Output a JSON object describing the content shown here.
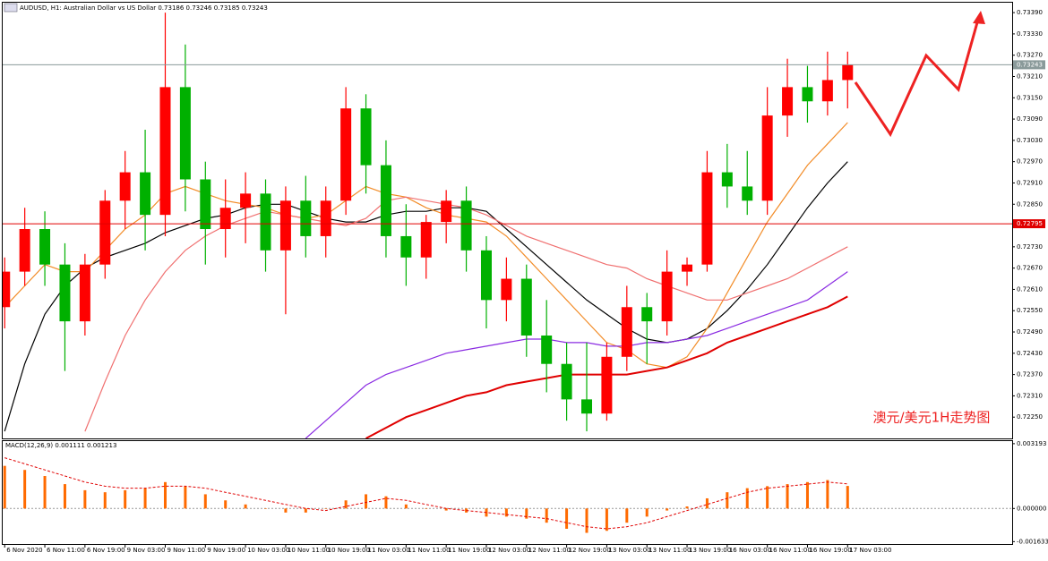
{
  "chart_data": [
    {
      "type": "candlestick",
      "title": "AUDUSD, H1: Australian Dollar vs US Dollar 0.73186 0.73246 0.73185 0.73243",
      "annotation": "澳元/美元1H走势图",
      "up_color": "#ff0000",
      "down_color": "#00b000",
      "open": [
        0.7256,
        0.7266,
        0.7278,
        0.7268,
        0.7252,
        0.7268,
        0.7286,
        0.7294,
        0.7282,
        0.7318,
        0.7292,
        0.7278,
        0.7284,
        0.7288,
        0.7272,
        0.7286,
        0.7276,
        0.7286,
        0.7312,
        0.7296,
        0.7276,
        0.727,
        0.728,
        0.7286,
        0.7272,
        0.7258,
        0.7264,
        0.7248,
        0.724,
        0.723,
        0.7226,
        0.7242,
        0.7256,
        0.7252,
        0.7266,
        0.7268,
        0.7294,
        0.729,
        0.7286,
        0.731,
        0.7318,
        0.7314,
        0.732
      ],
      "high": [
        0.727,
        0.7284,
        0.7283,
        0.7274,
        0.7271,
        0.7289,
        0.73,
        0.7306,
        0.7339,
        0.733,
        0.7297,
        0.7292,
        0.7294,
        0.7292,
        0.729,
        0.7293,
        0.729,
        0.7318,
        0.7316,
        0.7303,
        0.7285,
        0.7282,
        0.7289,
        0.729,
        0.7276,
        0.727,
        0.7268,
        0.7258,
        0.7246,
        0.7246,
        0.7246,
        0.7262,
        0.726,
        0.7272,
        0.727,
        0.73,
        0.7302,
        0.73,
        0.7318,
        0.7326,
        0.7324,
        0.7328,
        0.7328
      ],
      "low": [
        0.725,
        0.7262,
        0.7262,
        0.7238,
        0.7248,
        0.7264,
        0.7278,
        0.7272,
        0.7276,
        0.7283,
        0.7268,
        0.727,
        0.7274,
        0.7266,
        0.7254,
        0.727,
        0.727,
        0.7282,
        0.7288,
        0.727,
        0.7262,
        0.7264,
        0.7274,
        0.7266,
        0.725,
        0.7252,
        0.7242,
        0.7232,
        0.7224,
        0.7221,
        0.7224,
        0.7238,
        0.724,
        0.7248,
        0.7262,
        0.7266,
        0.7284,
        0.7282,
        0.7282,
        0.7304,
        0.7308,
        0.731,
        0.7312
      ],
      "close": [
        0.7266,
        0.7278,
        0.7268,
        0.7252,
        0.7268,
        0.7286,
        0.7294,
        0.7282,
        0.7318,
        0.7292,
        0.7278,
        0.7284,
        0.7288,
        0.7272,
        0.7286,
        0.7276,
        0.7286,
        0.7312,
        0.7296,
        0.7276,
        0.727,
        0.728,
        0.7286,
        0.7272,
        0.7258,
        0.7264,
        0.7248,
        0.724,
        0.723,
        0.7226,
        0.7242,
        0.7256,
        0.7252,
        0.7266,
        0.7268,
        0.7294,
        0.729,
        0.7286,
        0.731,
        0.7318,
        0.7314,
        0.732,
        0.73243
      ],
      "series": [
        {
          "color": "#000000",
          "values": [
            0.7221,
            0.724,
            0.7254,
            0.7262,
            0.7267,
            0.727,
            0.7272,
            0.7274,
            0.7277,
            0.7279,
            0.7281,
            0.7282,
            0.7284,
            0.7285,
            0.7285,
            0.7283,
            0.7281,
            0.728,
            0.728,
            0.7282,
            0.7283,
            0.7283,
            0.7284,
            0.7284,
            0.7283,
            0.7278,
            0.7273,
            0.7268,
            0.7263,
            0.7258,
            0.7254,
            0.725,
            0.7247,
            0.7246,
            0.7247,
            0.725,
            0.7255,
            0.7261,
            0.7268,
            0.7276,
            0.7284,
            0.7291,
            0.7297
          ]
        },
        {
          "color": "#f28c28",
          "values": [
            0.7256,
            0.7262,
            0.7268,
            0.7266,
            0.7266,
            0.7272,
            0.7278,
            0.7282,
            0.7288,
            0.729,
            0.7288,
            0.7286,
            0.7285,
            0.7284,
            0.7282,
            0.7281,
            0.7282,
            0.7286,
            0.729,
            0.7288,
            0.7287,
            0.7284,
            0.7282,
            0.7281,
            0.728,
            0.7276,
            0.727,
            0.7264,
            0.7258,
            0.7252,
            0.7246,
            0.7244,
            0.724,
            0.7239,
            0.7242,
            0.725,
            0.726,
            0.727,
            0.728,
            0.7288,
            0.7296,
            0.7302,
            0.7308
          ]
        },
        {
          "color": "#f07070",
          "values": [
            null,
            null,
            null,
            null,
            0.7221,
            0.7235,
            0.7248,
            0.7258,
            0.7266,
            0.7272,
            0.7276,
            0.7279,
            0.7281,
            0.7283,
            0.7282,
            0.7281,
            0.728,
            0.7279,
            0.7281,
            0.7286,
            0.7287,
            0.7286,
            0.7285,
            0.7284,
            0.7282,
            0.7279,
            0.7276,
            0.7274,
            0.7272,
            0.727,
            0.7268,
            0.7267,
            0.7264,
            0.7262,
            0.726,
            0.7258,
            0.7258,
            0.726,
            0.7262,
            0.7264,
            0.7267,
            0.727,
            0.7273
          ]
        },
        {
          "color": "#8a2be2",
          "values": [
            null,
            null,
            null,
            null,
            null,
            null,
            null,
            null,
            null,
            null,
            null,
            null,
            null,
            null,
            null,
            0.7219,
            0.7224,
            0.7229,
            0.7234,
            0.7237,
            0.7239,
            0.7241,
            0.7243,
            0.7244,
            0.7245,
            0.7246,
            0.7247,
            0.7247,
            0.7246,
            0.7246,
            0.7245,
            0.7245,
            0.7246,
            0.7246,
            0.7247,
            0.7248,
            0.725,
            0.7252,
            0.7254,
            0.7256,
            0.7258,
            0.7262,
            0.7266
          ]
        },
        {
          "color": "#e00000",
          "values": [
            null,
            null,
            null,
            null,
            null,
            null,
            null,
            null,
            null,
            null,
            null,
            null,
            null,
            null,
            null,
            null,
            null,
            null,
            0.7219,
            0.7222,
            0.7225,
            0.7227,
            0.7229,
            0.7231,
            0.7232,
            0.7234,
            0.7235,
            0.7236,
            0.7237,
            0.7237,
            0.7237,
            0.7237,
            0.7238,
            0.7239,
            0.7241,
            0.7243,
            0.7246,
            0.7248,
            0.725,
            0.7252,
            0.7254,
            0.7256,
            0.7259
          ]
        }
      ],
      "hlines": [
        {
          "value": 0.72795,
          "label": "0.72795",
          "color": "#e00000"
        },
        {
          "value": 0.73243,
          "label": "0.73243",
          "color": "#8a9a9a"
        }
      ],
      "xlim": [
        -0.1,
        50.2
      ],
      "ylim": [
        0.7219,
        0.73418
      ],
      "yticks": [
        {
          "value": 0.7225,
          "label": "0.72250"
        },
        {
          "value": 0.7231,
          "label": "0.72310"
        },
        {
          "value": 0.7237,
          "label": "0.72370"
        },
        {
          "value": 0.7243,
          "label": "0.72430"
        },
        {
          "value": 0.7249,
          "label": "0.72490"
        },
        {
          "value": 0.7255,
          "label": "0.72550"
        },
        {
          "value": 0.7261,
          "label": "0.72610"
        },
        {
          "value": 0.7267,
          "label": "0.72670"
        },
        {
          "value": 0.7273,
          "label": "0.72730"
        },
        {
          "value": 0.7279,
          "label": "0.72790"
        },
        {
          "value": 0.7285,
          "label": "0.72850"
        },
        {
          "value": 0.7291,
          "label": "0.72910"
        },
        {
          "value": 0.7297,
          "label": "0.72970"
        },
        {
          "value": 0.7303,
          "label": "0.73030"
        },
        {
          "value": 0.7309,
          "label": "0.73090"
        },
        {
          "value": 0.7315,
          "label": "0.73150"
        },
        {
          "value": 0.7321,
          "label": "0.73210"
        },
        {
          "value": 0.7327,
          "label": "0.73270"
        },
        {
          "value": 0.7333,
          "label": "0.73330"
        },
        {
          "value": 0.7339,
          "label": "0.73390"
        }
      ],
      "xticks": [
        {
          "value": 0,
          "label": "6 Nov 2020"
        },
        {
          "value": 2,
          "label": "6 Nov 11:00"
        },
        {
          "value": 4,
          "label": "6 Nov 19:00"
        },
        {
          "value": 6,
          "label": "9 Nov 03:00"
        },
        {
          "value": 8,
          "label": "9 Nov 11:00"
        },
        {
          "value": 10,
          "label": "9 Nov 19:00"
        },
        {
          "value": 12,
          "label": "10 Nov 03:00"
        },
        {
          "value": 14,
          "label": "10 Nov 11:00"
        },
        {
          "value": 16,
          "label": "10 Nov 19:00"
        },
        {
          "value": 18,
          "label": "11 Nov 03:00"
        },
        {
          "value": 20,
          "label": "11 Nov 11:00"
        },
        {
          "value": 22,
          "label": "11 Nov 19:00"
        },
        {
          "value": 24,
          "label": "12 Nov 03:00"
        },
        {
          "value": 26,
          "label": "12 Nov 11:00"
        },
        {
          "value": 28,
          "label": "12 Nov 19:00"
        },
        {
          "value": 30,
          "label": "13 Nov 03:00"
        },
        {
          "value": 32,
          "label": "13 Nov 11:00"
        },
        {
          "value": 34,
          "label": "13 Nov 19:00"
        },
        {
          "value": 36,
          "label": "16 Nov 03:00"
        },
        {
          "value": 38,
          "label": "16 Nov 11:00"
        },
        {
          "value": 40,
          "label": "16 Nov 19:00"
        },
        {
          "value": 42,
          "label": "17 Nov 03:00"
        }
      ]
    },
    {
      "type": "macd",
      "title": "MACD(12,26,9) 0.001111 0.001213",
      "color": "#ff6a00",
      "signal_color": "#e00000",
      "values": [
        0.0021,
        0.0019,
        0.0016,
        0.0012,
        0.0009,
        0.0008,
        0.0009,
        0.001,
        0.0013,
        0.0011,
        0.0007,
        0.0004,
        0.0002,
        0,
        -0.0002,
        -0.0002,
        0,
        0.0004,
        0.0007,
        0.0006,
        0.0002,
        0,
        -0.0001,
        -0.0002,
        -0.0004,
        -0.0004,
        -0.0005,
        -0.0007,
        -0.001,
        -0.0012,
        -0.0011,
        -0.0007,
        -0.0004,
        -0.0001,
        0.0001,
        0.0005,
        0.0008,
        0.001,
        0.0011,
        0.0012,
        0.0013,
        0.0014,
        0.001111
      ],
      "signal": [
        0.0025,
        0.0022,
        0.0019,
        0.0016,
        0.0013,
        0.0011,
        0.001,
        0.001,
        0.0011,
        0.0011,
        0.001,
        0.0008,
        0.0006,
        0.0004,
        0.0002,
        0,
        -0.0001,
        0.0001,
        0.0003,
        0.0005,
        0.0004,
        0.0002,
        0,
        -0.0001,
        -0.0002,
        -0.0003,
        -0.0004,
        -0.0005,
        -0.0007,
        -0.0009,
        -0.001,
        -0.0009,
        -0.0007,
        -0.0004,
        -0.0001,
        0.0002,
        0.0005,
        0.0008,
        0.001,
        0.0011,
        0.0012,
        0.0013,
        0.001213
      ],
      "ylim": [
        -0.00175,
        0.00332
      ],
      "yticks": [
        0.003193,
        {
          "value": 0,
          "label": "0.000000"
        },
        -0.001633
      ]
    }
  ]
}
